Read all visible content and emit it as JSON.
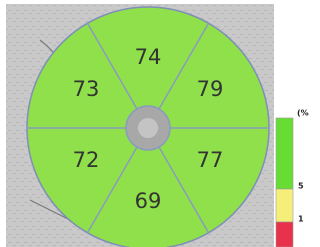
{
  "sectors": [
    {
      "label": 74
    },
    {
      "label": 79
    },
    {
      "label": 77
    },
    {
      "label": 69
    },
    {
      "label": 72
    },
    {
      "label": 73
    }
  ],
  "legend": {
    "unit": "(%",
    "ticks": [
      "5",
      "1"
    ]
  }
}
